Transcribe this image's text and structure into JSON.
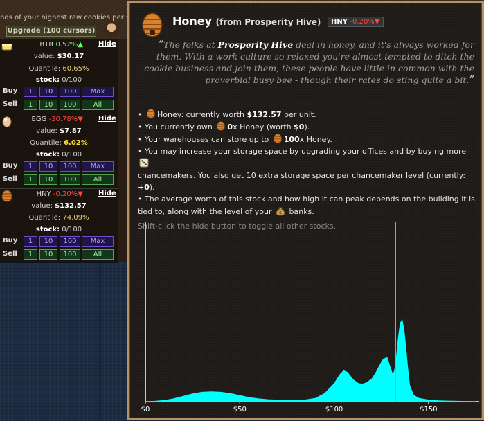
{
  "background": {
    "top_note": "nds of your highest raw cookies per se",
    "upgrade_label": "Upgrade (100 cursors)",
    "stocks": [
      {
        "ticker": "BTR",
        "delta": "0.52%",
        "dir": "up",
        "arrow": "▲",
        "hide": "Hide",
        "value_label": "value:",
        "value": "$30.17",
        "quantile_label": "Quantile:",
        "quantile": "60.65%",
        "stock_label": "stock:",
        "stock": "0/100"
      },
      {
        "ticker": "EGG",
        "delta": "-30.78%",
        "dir": "down",
        "arrow": "▼",
        "hide": "Hide",
        "value_label": "value:",
        "value": "$7.87",
        "quantile_label": "Quantile:",
        "quantile": "6.02%",
        "stock_label": "stock:",
        "stock": "0/100"
      },
      {
        "ticker": "HNY",
        "delta": "-0.20%",
        "dir": "down",
        "arrow": "▼",
        "hide": "Hide",
        "value_label": "value:",
        "value": "$132.57",
        "quantile_label": "Quantile:",
        "quantile": "74.09%",
        "stock_label": "stock:",
        "stock": "0/100"
      }
    ],
    "buy_label": "Buy",
    "sell_label": "Sell",
    "amounts": [
      "1",
      "10",
      "100"
    ],
    "buy_max": "Max",
    "sell_all": "All"
  },
  "tooltip": {
    "name": "Honey",
    "source": "(from Prosperity Hive)",
    "ticker": "HNY",
    "delta": "-0.20%",
    "arrow": "▼",
    "quote_open": "“",
    "quote_pre": "The folks at ",
    "quote_strong": "Prosperity Hive",
    "quote_post": " deal in honey, and it's always worked for them. With a work culture so relaxed you're almost tempted to ditch the cookie business and join them, these people have little in common with the proverbial busy bee - though their rates do sting quite a bit.",
    "quote_close": "”",
    "line1_pre": "Honey: currently worth ",
    "line1_value": "$132.57",
    "line1_post": " per unit.",
    "line2_pre": "You currently own ",
    "line2_count": "0",
    "line2_mid": "x Honey (worth ",
    "line2_worth": "$0",
    "line2_post": ").",
    "line3_pre": "Your warehouses can store up to ",
    "line3_count": "100",
    "line3_post": "x Honey.",
    "line4": "You may increase your storage space by upgrading your offices and by buying more",
    "line4b_pre": "chancemakers. You also get 10 extra storage space per chancemaker level (currently: ",
    "line4b_value": "+0",
    "line4b_post": ").",
    "line5_pre": "The average worth of this stock and how high it can peak depends on the building it is tied to, along with the level of your ",
    "line5_post": " banks.",
    "note": "Shift-click the hide button to toggle all other stocks."
  },
  "colors": {
    "accent_border": "#b99365",
    "curve": "#00ffff",
    "current_marker": "#d39b2a",
    "up": "#66ff66",
    "down": "#ff4444"
  },
  "chart_data": {
    "type": "area",
    "title": "",
    "xlabel": "",
    "ylabel": "",
    "xlim": [
      0,
      175
    ],
    "ticks": [
      {
        "value": 0,
        "label": "$0"
      },
      {
        "value": 50,
        "label": "$50"
      },
      {
        "value": 100,
        "label": "$100"
      },
      {
        "value": 150,
        "label": "$150"
      }
    ],
    "current_value": 132.57,
    "series": [
      {
        "x": [
          0,
          5,
          10,
          15,
          20,
          25,
          30,
          35,
          40,
          45,
          50,
          55,
          60,
          65,
          70,
          75,
          80,
          85,
          90,
          95,
          100,
          103,
          105,
          107,
          110,
          113,
          115,
          117,
          120,
          122,
          124,
          126,
          128,
          130,
          131,
          132,
          133,
          134,
          135,
          136,
          137,
          138,
          139,
          140,
          142,
          145,
          150,
          155,
          160,
          165,
          170,
          175
        ],
        "values": [
          0.0,
          0.005,
          0.015,
          0.035,
          0.065,
          0.095,
          0.115,
          0.12,
          0.115,
          0.1,
          0.075,
          0.05,
          0.035,
          0.025,
          0.02,
          0.018,
          0.018,
          0.022,
          0.04,
          0.1,
          0.22,
          0.33,
          0.38,
          0.36,
          0.27,
          0.22,
          0.215,
          0.23,
          0.28,
          0.35,
          0.44,
          0.52,
          0.54,
          0.4,
          0.33,
          0.38,
          0.55,
          0.78,
          0.96,
          1.0,
          0.88,
          0.66,
          0.4,
          0.2,
          0.08,
          0.04,
          0.02,
          0.012,
          0.008,
          0.005,
          0.003,
          0.0
        ]
      }
    ]
  }
}
